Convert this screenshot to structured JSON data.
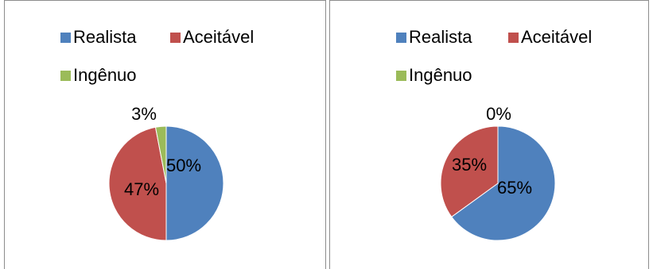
{
  "chart_data": [
    {
      "type": "pie",
      "categories": [
        "Realista",
        "Aceitável",
        "Ingênuo"
      ],
      "values": [
        50,
        47,
        3
      ],
      "value_labels": [
        "50%",
        "47%",
        "3%"
      ],
      "legend_position": "top",
      "colors": [
        "#4f81bd",
        "#c0504d",
        "#9bbb59"
      ]
    },
    {
      "type": "pie",
      "categories": [
        "Realista",
        "Aceitável",
        "Ingênuo"
      ],
      "values": [
        65,
        35,
        0
      ],
      "value_labels": [
        "65%",
        "35%",
        "0%"
      ],
      "legend_position": "top",
      "colors": [
        "#4f81bd",
        "#c0504d",
        "#9bbb59"
      ]
    }
  ]
}
